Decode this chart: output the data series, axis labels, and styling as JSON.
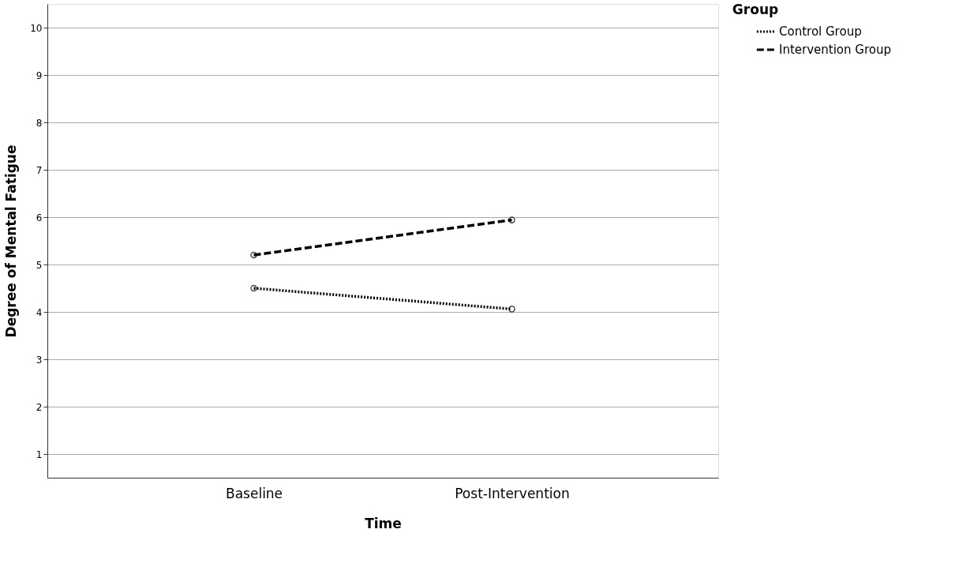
{
  "chart_data": {
    "type": "line",
    "xlabel": "Time",
    "ylabel": "Degree of Mental Fatigue",
    "legend_title": "Group",
    "categories": [
      "Baseline",
      "Post-Intervention"
    ],
    "series": [
      {
        "name": "Control Group",
        "color": "#000000",
        "line_style": "dotted",
        "values": [
          4.5,
          4.06
        ]
      },
      {
        "name": "Intervention Group",
        "color": "#000000",
        "line_style": "dashed",
        "values": [
          5.2,
          5.94
        ]
      }
    ],
    "ylim": [
      0.5,
      10.5
    ],
    "yticks": [
      1,
      2,
      3,
      4,
      5,
      6,
      7,
      8,
      9,
      10
    ],
    "grid": "y",
    "legend": "top right",
    "marker": "circle"
  }
}
